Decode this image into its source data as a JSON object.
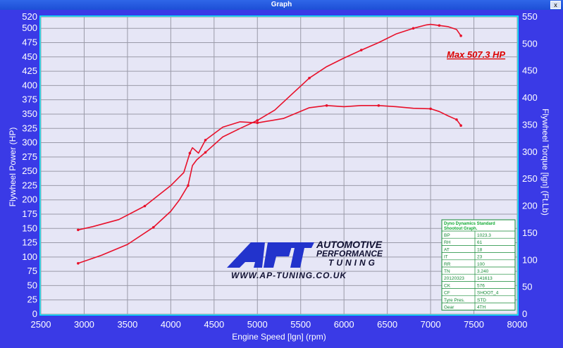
{
  "window": {
    "title": "Graph",
    "close_glyph": "x"
  },
  "chart_data": {
    "type": "line",
    "xlabel": "Engine Speed [lgn] (rpm)",
    "ylabel_left": "Flywheel Power (HP)",
    "ylabel_right": "Flywheel Torque [lgn] (Ft.Lb)",
    "xlim": [
      2500,
      8000
    ],
    "ylim_left": [
      0,
      520
    ],
    "ylim_right": [
      0,
      550
    ],
    "x_ticks": [
      2500,
      3000,
      3500,
      4000,
      4500,
      5000,
      5500,
      6000,
      6500,
      7000,
      7500,
      8000
    ],
    "y_ticks_left": [
      0,
      25,
      50,
      75,
      100,
      125,
      150,
      175,
      200,
      225,
      250,
      275,
      300,
      325,
      350,
      375,
      400,
      425,
      450,
      475,
      500,
      520
    ],
    "y_ticks_right": [
      0,
      50,
      100,
      150,
      200,
      250,
      300,
      350,
      400,
      450,
      500,
      550
    ],
    "grid": true,
    "annotation": "Max 507.3 HP",
    "series": [
      {
        "axis": "left",
        "color": "#e8102a",
        "x": [
          2930,
          3200,
          3500,
          3800,
          4000,
          4100,
          4200,
          4250,
          4300,
          4400,
          4600,
          4800,
          5000,
          5200,
          5400,
          5600,
          5800,
          6000,
          6200,
          6400,
          6600,
          6800,
          6950,
          7000,
          7100,
          7200,
          7300,
          7350
        ],
        "values": [
          89,
          103,
          122,
          152,
          180,
          200,
          225,
          260,
          270,
          283,
          310,
          325,
          339,
          357,
          385,
          413,
          433,
          448,
          462,
          475,
          490,
          500,
          506,
          507,
          505,
          503,
          498,
          487
        ]
      },
      {
        "axis": "right",
        "color": "#e8102a",
        "x": [
          2930,
          3100,
          3400,
          3700,
          4000,
          4150,
          4220,
          4250,
          4320,
          4400,
          4600,
          4800,
          5000,
          5300,
          5600,
          5800,
          6000,
          6200,
          6400,
          6600,
          6800,
          7000,
          7100,
          7200,
          7300,
          7350
        ],
        "values": [
          156,
          162,
          175,
          200,
          238,
          262,
          298,
          308,
          298,
          322,
          346,
          356,
          354,
          362,
          382,
          386,
          384,
          386,
          386,
          384,
          381,
          380,
          375,
          367,
          360,
          349
        ]
      }
    ]
  },
  "legend_box": {
    "title_line1": "Dyno Dynamics Standard",
    "title_line2": "Shootout Graph.",
    "rows": [
      [
        "BP",
        "1023.3"
      ],
      [
        "RH",
        "61"
      ],
      [
        "AT",
        "18"
      ],
      [
        "IT",
        "23"
      ],
      [
        "RR",
        "100"
      ],
      [
        "TN",
        "3.240"
      ],
      [
        "20120323",
        "141613"
      ],
      [
        "CK",
        "576"
      ],
      [
        "CF",
        "SHOOT_4"
      ],
      [
        "Tyre Pres.",
        "STD"
      ],
      [
        "Gear",
        "4TH"
      ]
    ]
  },
  "logo": {
    "mark": "APT",
    "line1": "AUTOMOTIVE",
    "line2": "PERFORMANCE",
    "line3": "TUNING",
    "url": "WWW.AP-TUNING.CO.UK"
  }
}
